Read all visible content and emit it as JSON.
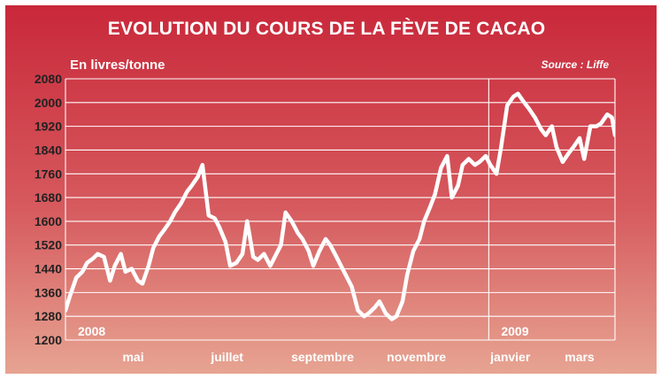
{
  "chart_data": {
    "type": "line",
    "title": "EVOLUTION DU COURS DE LA FÈVE DE CACAO",
    "ylabel": "En livres/tonne",
    "source": "Source : Liffe",
    "ylim": [
      1200,
      2080
    ],
    "yticks": [
      1200,
      1280,
      1360,
      1440,
      1520,
      1600,
      1680,
      1760,
      1840,
      1920,
      2000,
      2080
    ],
    "xlim": [
      "2008-04-01",
      "2009-03-24"
    ],
    "xticks": [
      {
        "label": "mai",
        "date": "2008-05-15"
      },
      {
        "label": "juillet",
        "date": "2008-07-15"
      },
      {
        "label": "septembre",
        "date": "2008-09-15"
      },
      {
        "label": "novembre",
        "date": "2008-11-15"
      },
      {
        "label": "janvier",
        "date": "2009-01-15"
      },
      {
        "label": "mars",
        "date": "2009-03-01"
      }
    ],
    "year_markers": [
      {
        "label": "2008",
        "date": "2008-04-01"
      },
      {
        "label": "2009",
        "date": "2009-01-01"
      }
    ],
    "grid": true,
    "colors": {
      "line": "#ffffff",
      "bg_top": "#c9283a",
      "bg_bottom": "#e7a492"
    },
    "series": [
      {
        "x": [
          "2008-04-01",
          "2008-04-04",
          "2008-04-08",
          "2008-04-12",
          "2008-04-15",
          "2008-04-19",
          "2008-04-22",
          "2008-04-26",
          "2008-04-30",
          "2008-05-03",
          "2008-05-07",
          "2008-05-10",
          "2008-05-14",
          "2008-05-18",
          "2008-05-21",
          "2008-05-25",
          "2008-05-28",
          "2008-06-01",
          "2008-06-04",
          "2008-06-08",
          "2008-06-11",
          "2008-06-15",
          "2008-06-19",
          "2008-06-22",
          "2008-06-26",
          "2008-06-29",
          "2008-07-03",
          "2008-07-07",
          "2008-07-10",
          "2008-07-14",
          "2008-07-17",
          "2008-07-21",
          "2008-07-25",
          "2008-07-28",
          "2008-08-01",
          "2008-08-04",
          "2008-08-08",
          "2008-08-12",
          "2008-08-15",
          "2008-08-19",
          "2008-08-22",
          "2008-08-26",
          "2008-08-30",
          "2008-09-02",
          "2008-09-06",
          "2008-09-09",
          "2008-09-13",
          "2008-09-17",
          "2008-09-20",
          "2008-09-24",
          "2008-09-27",
          "2008-10-01",
          "2008-10-04",
          "2008-10-08",
          "2008-10-12",
          "2008-10-15",
          "2008-10-19",
          "2008-10-22",
          "2008-10-26",
          "2008-10-30",
          "2008-11-02",
          "2008-11-06",
          "2008-11-09",
          "2008-11-13",
          "2008-11-17",
          "2008-11-20",
          "2008-11-24",
          "2008-11-27",
          "2008-12-01",
          "2008-12-05",
          "2008-12-08",
          "2008-12-12",
          "2008-12-15",
          "2008-12-19",
          "2008-12-23",
          "2008-12-26",
          "2008-12-30",
          "2009-01-02",
          "2009-01-06",
          "2009-01-09",
          "2009-01-13",
          "2009-01-17",
          "2009-01-20",
          "2009-01-24",
          "2009-01-27",
          "2009-01-31",
          "2009-02-04",
          "2009-02-07",
          "2009-02-11",
          "2009-02-14",
          "2009-02-18",
          "2009-02-22",
          "2009-02-25",
          "2009-03-01",
          "2009-03-04",
          "2009-03-08",
          "2009-03-12",
          "2009-03-15",
          "2009-03-19",
          "2009-03-22",
          "2009-03-24"
        ],
        "values": [
          1300,
          1350,
          1410,
          1430,
          1460,
          1475,
          1490,
          1480,
          1400,
          1450,
          1490,
          1430,
          1440,
          1400,
          1390,
          1450,
          1510,
          1550,
          1570,
          1600,
          1630,
          1660,
          1700,
          1720,
          1750,
          1790,
          1620,
          1610,
          1580,
          1530,
          1450,
          1460,
          1490,
          1600,
          1480,
          1470,
          1490,
          1450,
          1480,
          1520,
          1630,
          1600,
          1560,
          1540,
          1500,
          1450,
          1500,
          1540,
          1520,
          1480,
          1450,
          1410,
          1380,
          1300,
          1280,
          1290,
          1310,
          1330,
          1290,
          1270,
          1280,
          1330,
          1420,
          1500,
          1540,
          1600,
          1650,
          1690,
          1780,
          1820,
          1680,
          1720,
          1790,
          1810,
          1790,
          1800,
          1820,
          1790,
          1760,
          1850,
          1990,
          2020,
          2030,
          2000,
          1980,
          1950,
          1910,
          1890,
          1920,
          1850,
          1800,
          1830,
          1850,
          1880,
          1810,
          1920,
          1920,
          1930,
          1960,
          1950,
          1890
        ]
      }
    ]
  }
}
